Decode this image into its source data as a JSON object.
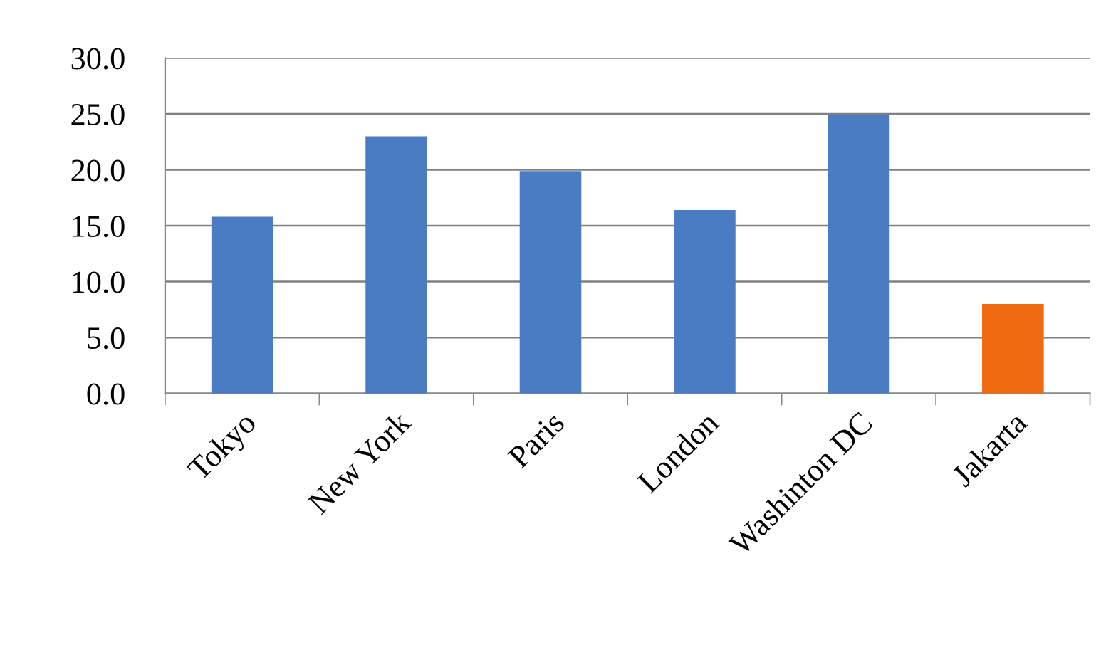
{
  "chart_data": {
    "type": "bar",
    "categories": [
      "Tokyo",
      "New York",
      "Paris",
      "London",
      "Washinton DC",
      "Jakarta"
    ],
    "values": [
      15.8,
      23.0,
      19.9,
      16.4,
      24.9,
      8.0
    ],
    "colors": [
      "#4a7cc4",
      "#4a7cc4",
      "#4a7cc4",
      "#4a7cc4",
      "#4a7cc4",
      "#f06a10"
    ],
    "ylim": [
      0,
      30
    ],
    "yticks": [
      {
        "value": 0,
        "label": "0.0"
      },
      {
        "value": 5,
        "label": "5.0"
      },
      {
        "value": 10,
        "label": "10.0"
      },
      {
        "value": 15,
        "label": "15.0"
      },
      {
        "value": 20,
        "label": "20.0"
      },
      {
        "value": 25,
        "label": "25.0"
      },
      {
        "value": 30,
        "label": "30.0"
      }
    ],
    "grid": "y",
    "legend": false
  }
}
